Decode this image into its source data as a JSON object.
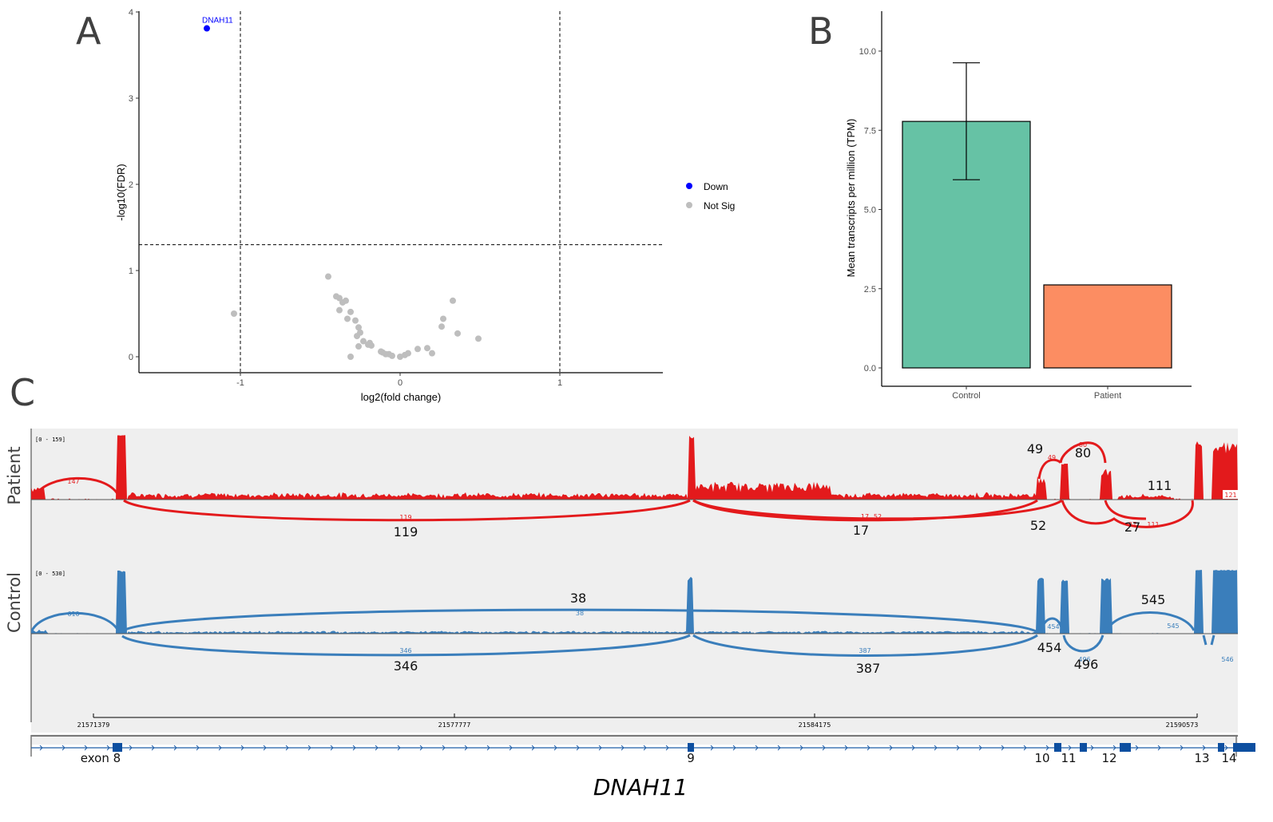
{
  "panels": {
    "a": "A",
    "b": "B",
    "c": "C"
  },
  "chart_data": [
    {
      "type": "scatter",
      "title": "",
      "xlabel": "log2(fold change)",
      "ylabel": "-log10(FDR)",
      "xlim": [
        -1.6,
        1.6
      ],
      "ylim": [
        -0.18,
        4.0
      ],
      "xticks": [
        "-1",
        "0",
        "1"
      ],
      "xtick_values": [
        -1,
        0,
        1
      ],
      "yticks": [
        "0",
        "1",
        "2",
        "3",
        "4"
      ],
      "ytick_values": [
        0,
        1,
        2,
        3,
        4
      ],
      "thresholds": {
        "x": [
          -1,
          1
        ],
        "y": 1.3
      },
      "legend": {
        "position": "right",
        "entries": [
          {
            "label": "Down",
            "color": "#0000ff"
          },
          {
            "label": "Not Sig",
            "color": "#bebebe"
          }
        ]
      },
      "series": [
        {
          "name": "Down",
          "color": "#0000ff",
          "points": [
            {
              "x": -1.21,
              "y": 3.81,
              "label": "DNAH11"
            }
          ]
        },
        {
          "name": "Not Sig",
          "color": "#bebebe",
          "points": [
            {
              "x": -1.04,
              "y": 0.5
            },
            {
              "x": -0.45,
              "y": 0.93
            },
            {
              "x": -0.4,
              "y": 0.7
            },
            {
              "x": -0.38,
              "y": 0.68
            },
            {
              "x": -0.36,
              "y": 0.63
            },
            {
              "x": -0.34,
              "y": 0.65
            },
            {
              "x": -0.38,
              "y": 0.54
            },
            {
              "x": -0.33,
              "y": 0.44
            },
            {
              "x": -0.31,
              "y": 0.52
            },
            {
              "x": -0.28,
              "y": 0.42
            },
            {
              "x": -0.26,
              "y": 0.34
            },
            {
              "x": -0.25,
              "y": 0.28
            },
            {
              "x": -0.27,
              "y": 0.24
            },
            {
              "x": -0.23,
              "y": 0.18
            },
            {
              "x": -0.26,
              "y": 0.12
            },
            {
              "x": -0.31,
              "y": 0.0
            },
            {
              "x": -0.19,
              "y": 0.16
            },
            {
              "x": -0.18,
              "y": 0.13
            },
            {
              "x": -0.2,
              "y": 0.14
            },
            {
              "x": -0.12,
              "y": 0.06
            },
            {
              "x": -0.11,
              "y": 0.05
            },
            {
              "x": -0.09,
              "y": 0.03
            },
            {
              "x": -0.07,
              "y": 0.03
            },
            {
              "x": -0.05,
              "y": 0.01
            },
            {
              "x": 0.0,
              "y": 0.0
            },
            {
              "x": 0.03,
              "y": 0.02
            },
            {
              "x": 0.05,
              "y": 0.04
            },
            {
              "x": 0.11,
              "y": 0.09
            },
            {
              "x": 0.17,
              "y": 0.1
            },
            {
              "x": 0.2,
              "y": 0.04
            },
            {
              "x": 0.26,
              "y": 0.35
            },
            {
              "x": 0.27,
              "y": 0.44
            },
            {
              "x": 0.33,
              "y": 0.65
            },
            {
              "x": 0.36,
              "y": 0.27
            },
            {
              "x": 0.49,
              "y": 0.21
            }
          ]
        }
      ]
    },
    {
      "type": "bar",
      "title": "",
      "xlabel": "",
      "ylabel": "Mean transcripts per million (TPM)",
      "categories": [
        "Control",
        "Patient"
      ],
      "values": [
        7.78,
        2.62
      ],
      "error_low": [
        5.94,
        null
      ],
      "error_high": [
        9.63,
        null
      ],
      "colors": [
        "#66c2a5",
        "#fc8d62"
      ],
      "ylim": [
        -0.5,
        10.5
      ],
      "yticks": [
        "0.0",
        "2.5",
        "5.0",
        "7.5",
        "10.0"
      ],
      "ytick_values": [
        0,
        2.5,
        5,
        7.5,
        10
      ]
    },
    {
      "type": "sashimi",
      "gene": "DNAH11",
      "tracks": [
        {
          "name": "Patient",
          "color": "#e31a1c",
          "range_label": "[0 - 159]",
          "junction_labels_small": [
            "147",
            "119",
            "17",
            "52",
            "49",
            "80",
            "27",
            "111",
            "121"
          ],
          "junction_labels_large": [
            {
              "text": "119"
            },
            {
              "text": "17"
            },
            {
              "text": "52"
            },
            {
              "text": "27"
            },
            {
              "text": "49"
            },
            {
              "text": "80"
            },
            {
              "text": "111"
            }
          ]
        },
        {
          "name": "Control",
          "color": "#3a7ebb",
          "range_label": "[0 - 530]",
          "junction_labels_small": [
            "610",
            "38",
            "346",
            "387",
            "454",
            "496",
            "545",
            "546"
          ],
          "junction_labels_large": [
            {
              "text": "38"
            },
            {
              "text": "346"
            },
            {
              "text": "387"
            },
            {
              "text": "454"
            },
            {
              "text": "496"
            },
            {
              "text": "545"
            }
          ]
        }
      ],
      "coordinates": [
        "21571379",
        "21577777",
        "21584175",
        "21590573"
      ],
      "exons": [
        "exon 8",
        "9",
        "10",
        "11",
        "12",
        "13",
        "14"
      ]
    }
  ]
}
